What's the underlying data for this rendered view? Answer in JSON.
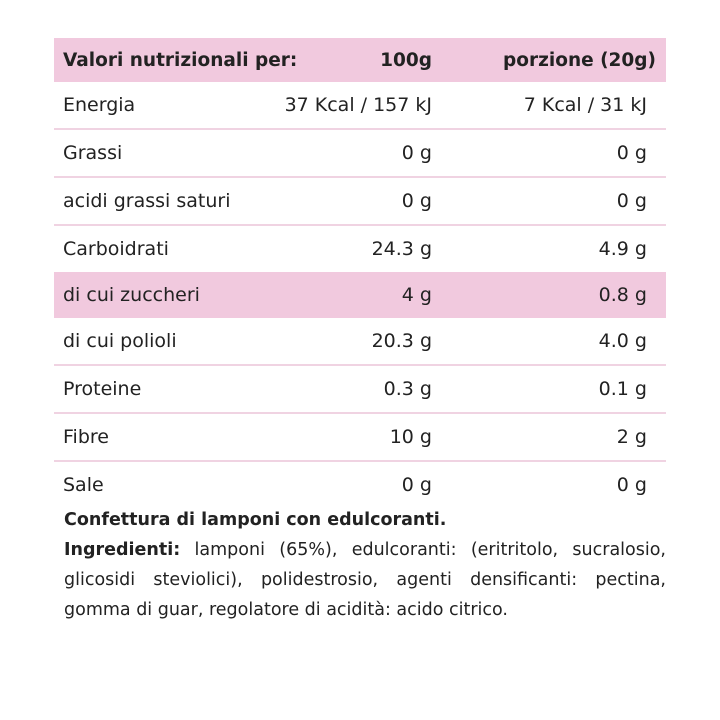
{
  "table": {
    "header": {
      "label": "Valori nutrizionali per:",
      "per100": "100g",
      "portion": "porzione (20g)"
    },
    "rows": [
      {
        "label": "Energia",
        "per100": "37 Kcal / 157 kJ",
        "portion": "7 Kcal / 31 kJ"
      },
      {
        "label": "Grassi",
        "per100": "0 g",
        "portion": "0 g"
      },
      {
        "label": "acidi grassi saturi",
        "per100": "0 g",
        "portion": "0 g"
      },
      {
        "label": "Carboidrati",
        "per100": "24.3 g",
        "portion": "4.9 g"
      },
      {
        "label": "di cui zuccheri",
        "per100": "4 g",
        "portion": "0.8 g"
      },
      {
        "label": "di cui polioli",
        "per100": "20.3 g",
        "portion": "4.0 g"
      },
      {
        "label": "Proteine",
        "per100": "0.3 g",
        "portion": "0.1 g"
      },
      {
        "label": "Fibre",
        "per100": "10 g",
        "portion": "2 g"
      },
      {
        "label": "Sale",
        "per100": "0 g",
        "portion": "0 g"
      }
    ]
  },
  "description": {
    "title": "Confettura di lamponi con edulcoranti.",
    "ingredients_label": "Ingredienti:",
    "ingredients_text": " lamponi (65%), edulcoranti: (eritritolo, sucralosio, glicosidi steviolici), polidestrosio, agenti densificanti: pectina, gomma di guar, regolatore di acidità: acido citrico."
  },
  "colors": {
    "accent_pink": "#f1c9de",
    "divider": "#f0d3e2",
    "text": "#222222"
  }
}
